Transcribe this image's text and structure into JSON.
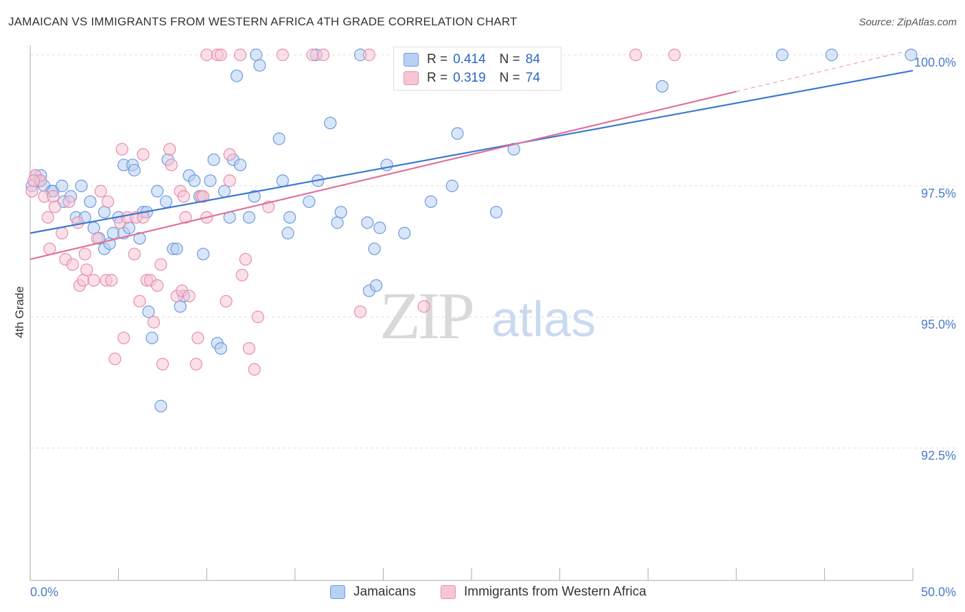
{
  "title": "JAMAICAN VS IMMIGRANTS FROM WESTERN AFRICA 4TH GRADE CORRELATION CHART",
  "source": "Source: ZipAtlas.com",
  "watermark": {
    "zip": "ZIP",
    "atlas": "atlas"
  },
  "legend": {
    "r_label": "R =",
    "n_label": "N =",
    "rows": [
      {
        "r": "0.414",
        "n": "84",
        "color": "#6b9be0",
        "fill": "#b9d0f2"
      },
      {
        "r": "0.319",
        "n": "74",
        "color": "#ea8cab",
        "fill": "#f6c6d6"
      }
    ]
  },
  "chart_data": {
    "type": "scatter",
    "ylabel": "4th Grade",
    "xlabel": "",
    "xlim": [
      0,
      50
    ],
    "ylim": [
      90.2,
      100.2
    ],
    "x_tick_labels": [
      "0.0%",
      "50.0%"
    ],
    "y_tick_labels": [
      "100.0%",
      "97.5%",
      "95.0%",
      "92.5%"
    ],
    "y_ticks": [
      100,
      97.5,
      95,
      92.5
    ],
    "grid": true,
    "series": [
      {
        "name": "Jamaicans",
        "color": "#6b9be0",
        "fill": "#b9d0f2",
        "trend": {
          "x0": 0,
          "y0": 96.6,
          "x1": 50,
          "y1": 99.7
        },
        "points": [
          [
            0.3,
            97.7
          ],
          [
            0.5,
            97.6
          ],
          [
            0.6,
            97.7
          ],
          [
            0.8,
            97.5
          ],
          [
            1.2,
            97.4
          ],
          [
            1.3,
            97.4
          ],
          [
            1.8,
            97.5
          ],
          [
            1.9,
            97.2
          ],
          [
            2.3,
            97.3
          ],
          [
            2.6,
            96.9
          ],
          [
            2.9,
            97.5
          ],
          [
            3.1,
            96.9
          ],
          [
            3.4,
            97.2
          ],
          [
            3.6,
            96.7
          ],
          [
            3.9,
            96.5
          ],
          [
            4.2,
            96.3
          ],
          [
            4.2,
            97.0
          ],
          [
            4.5,
            96.4
          ],
          [
            4.7,
            96.6
          ],
          [
            5.0,
            96.9
          ],
          [
            5.3,
            96.6
          ],
          [
            5.3,
            97.9
          ],
          [
            5.6,
            96.7
          ],
          [
            5.8,
            97.9
          ],
          [
            5.9,
            97.8
          ],
          [
            6.2,
            96.5
          ],
          [
            6.4,
            97.0
          ],
          [
            6.6,
            97.0
          ],
          [
            6.7,
            95.1
          ],
          [
            6.9,
            94.6
          ],
          [
            7.2,
            97.4
          ],
          [
            7.4,
            93.3
          ],
          [
            7.7,
            97.2
          ],
          [
            7.8,
            98.0
          ],
          [
            8.1,
            96.3
          ],
          [
            8.3,
            96.3
          ],
          [
            8.5,
            95.2
          ],
          [
            8.7,
            95.4
          ],
          [
            9.0,
            97.7
          ],
          [
            9.3,
            97.6
          ],
          [
            9.6,
            97.3
          ],
          [
            9.8,
            96.2
          ],
          [
            10.2,
            97.6
          ],
          [
            10.4,
            98.0
          ],
          [
            10.6,
            94.5
          ],
          [
            10.8,
            94.4
          ],
          [
            11.0,
            97.4
          ],
          [
            11.3,
            96.9
          ],
          [
            11.5,
            98.0
          ],
          [
            11.7,
            99.6
          ],
          [
            11.9,
            97.9
          ],
          [
            12.4,
            96.9
          ],
          [
            12.7,
            97.3
          ],
          [
            12.8,
            100.0
          ],
          [
            13.0,
            99.8
          ],
          [
            14.1,
            98.4
          ],
          [
            14.3,
            97.6
          ],
          [
            14.6,
            96.6
          ],
          [
            14.7,
            96.9
          ],
          [
            15.8,
            97.2
          ],
          [
            16.2,
            100.0
          ],
          [
            16.3,
            97.6
          ],
          [
            17.0,
            98.7
          ],
          [
            17.4,
            96.8
          ],
          [
            17.6,
            97.0
          ],
          [
            18.7,
            100.0
          ],
          [
            19.1,
            96.8
          ],
          [
            19.2,
            95.5
          ],
          [
            19.5,
            96.3
          ],
          [
            19.6,
            95.6
          ],
          [
            19.8,
            96.7
          ],
          [
            20.2,
            97.9
          ],
          [
            21.2,
            96.6
          ],
          [
            22.7,
            97.2
          ],
          [
            23.9,
            97.5
          ],
          [
            24.2,
            98.5
          ],
          [
            26.4,
            97.0
          ],
          [
            26.5,
            100.0
          ],
          [
            27.4,
            98.2
          ],
          [
            35.8,
            99.4
          ],
          [
            42.6,
            100.0
          ],
          [
            45.4,
            100.0
          ],
          [
            49.9,
            100.0
          ],
          [
            0.1,
            97.5
          ]
        ]
      },
      {
        "name": "Immigrants from Western Africa",
        "color": "#ea8cab",
        "fill": "#f6c6d6",
        "trend": {
          "x0": 0,
          "y0": 96.1,
          "x1": 40,
          "y1": 99.3
        },
        "trend_dashed_to": {
          "x": 50,
          "y": 100.1
        },
        "points": [
          [
            0.3,
            97.7
          ],
          [
            0.6,
            97.6
          ],
          [
            0.8,
            97.3
          ],
          [
            1.0,
            96.9
          ],
          [
            1.1,
            96.3
          ],
          [
            1.3,
            97.3
          ],
          [
            1.4,
            97.1
          ],
          [
            1.8,
            96.6
          ],
          [
            2.0,
            96.1
          ],
          [
            2.2,
            97.2
          ],
          [
            2.4,
            96.0
          ],
          [
            2.7,
            96.8
          ],
          [
            2.8,
            95.6
          ],
          [
            3.0,
            95.7
          ],
          [
            3.1,
            96.2
          ],
          [
            3.2,
            95.9
          ],
          [
            3.6,
            95.7
          ],
          [
            3.8,
            96.5
          ],
          [
            4.0,
            97.4
          ],
          [
            4.3,
            95.7
          ],
          [
            4.4,
            97.2
          ],
          [
            4.6,
            95.7
          ],
          [
            4.8,
            94.2
          ],
          [
            5.1,
            96.8
          ],
          [
            5.2,
            98.2
          ],
          [
            5.3,
            94.6
          ],
          [
            5.5,
            96.9
          ],
          [
            5.9,
            96.2
          ],
          [
            6.0,
            96.9
          ],
          [
            6.2,
            95.3
          ],
          [
            6.4,
            96.9
          ],
          [
            6.4,
            98.1
          ],
          [
            6.6,
            95.7
          ],
          [
            6.8,
            95.7
          ],
          [
            7.0,
            94.9
          ],
          [
            7.2,
            95.6
          ],
          [
            7.4,
            96.0
          ],
          [
            7.5,
            94.1
          ],
          [
            7.9,
            98.2
          ],
          [
            8.0,
            97.9
          ],
          [
            8.3,
            95.4
          ],
          [
            8.5,
            97.4
          ],
          [
            8.6,
            95.5
          ],
          [
            8.7,
            97.3
          ],
          [
            8.8,
            96.9
          ],
          [
            9.0,
            95.4
          ],
          [
            9.4,
            94.1
          ],
          [
            9.5,
            94.6
          ],
          [
            9.7,
            97.3
          ],
          [
            9.8,
            97.3
          ],
          [
            10.0,
            96.9
          ],
          [
            10.0,
            100.0
          ],
          [
            10.6,
            100.0
          ],
          [
            10.8,
            100.0
          ],
          [
            11.1,
            95.3
          ],
          [
            11.3,
            97.6
          ],
          [
            11.3,
            98.1
          ],
          [
            11.9,
            100.0
          ],
          [
            12.0,
            95.8
          ],
          [
            12.2,
            96.1
          ],
          [
            12.4,
            94.4
          ],
          [
            12.7,
            94.0
          ],
          [
            12.9,
            95.0
          ],
          [
            13.5,
            97.1
          ],
          [
            14.3,
            100.0
          ],
          [
            16.0,
            100.0
          ],
          [
            16.6,
            100.0
          ],
          [
            18.7,
            95.1
          ],
          [
            19.2,
            100.0
          ],
          [
            22.3,
            95.2
          ],
          [
            34.3,
            100.0
          ],
          [
            36.5,
            100.0
          ],
          [
            0.1,
            97.4
          ],
          [
            0.2,
            97.6
          ]
        ]
      }
    ]
  }
}
